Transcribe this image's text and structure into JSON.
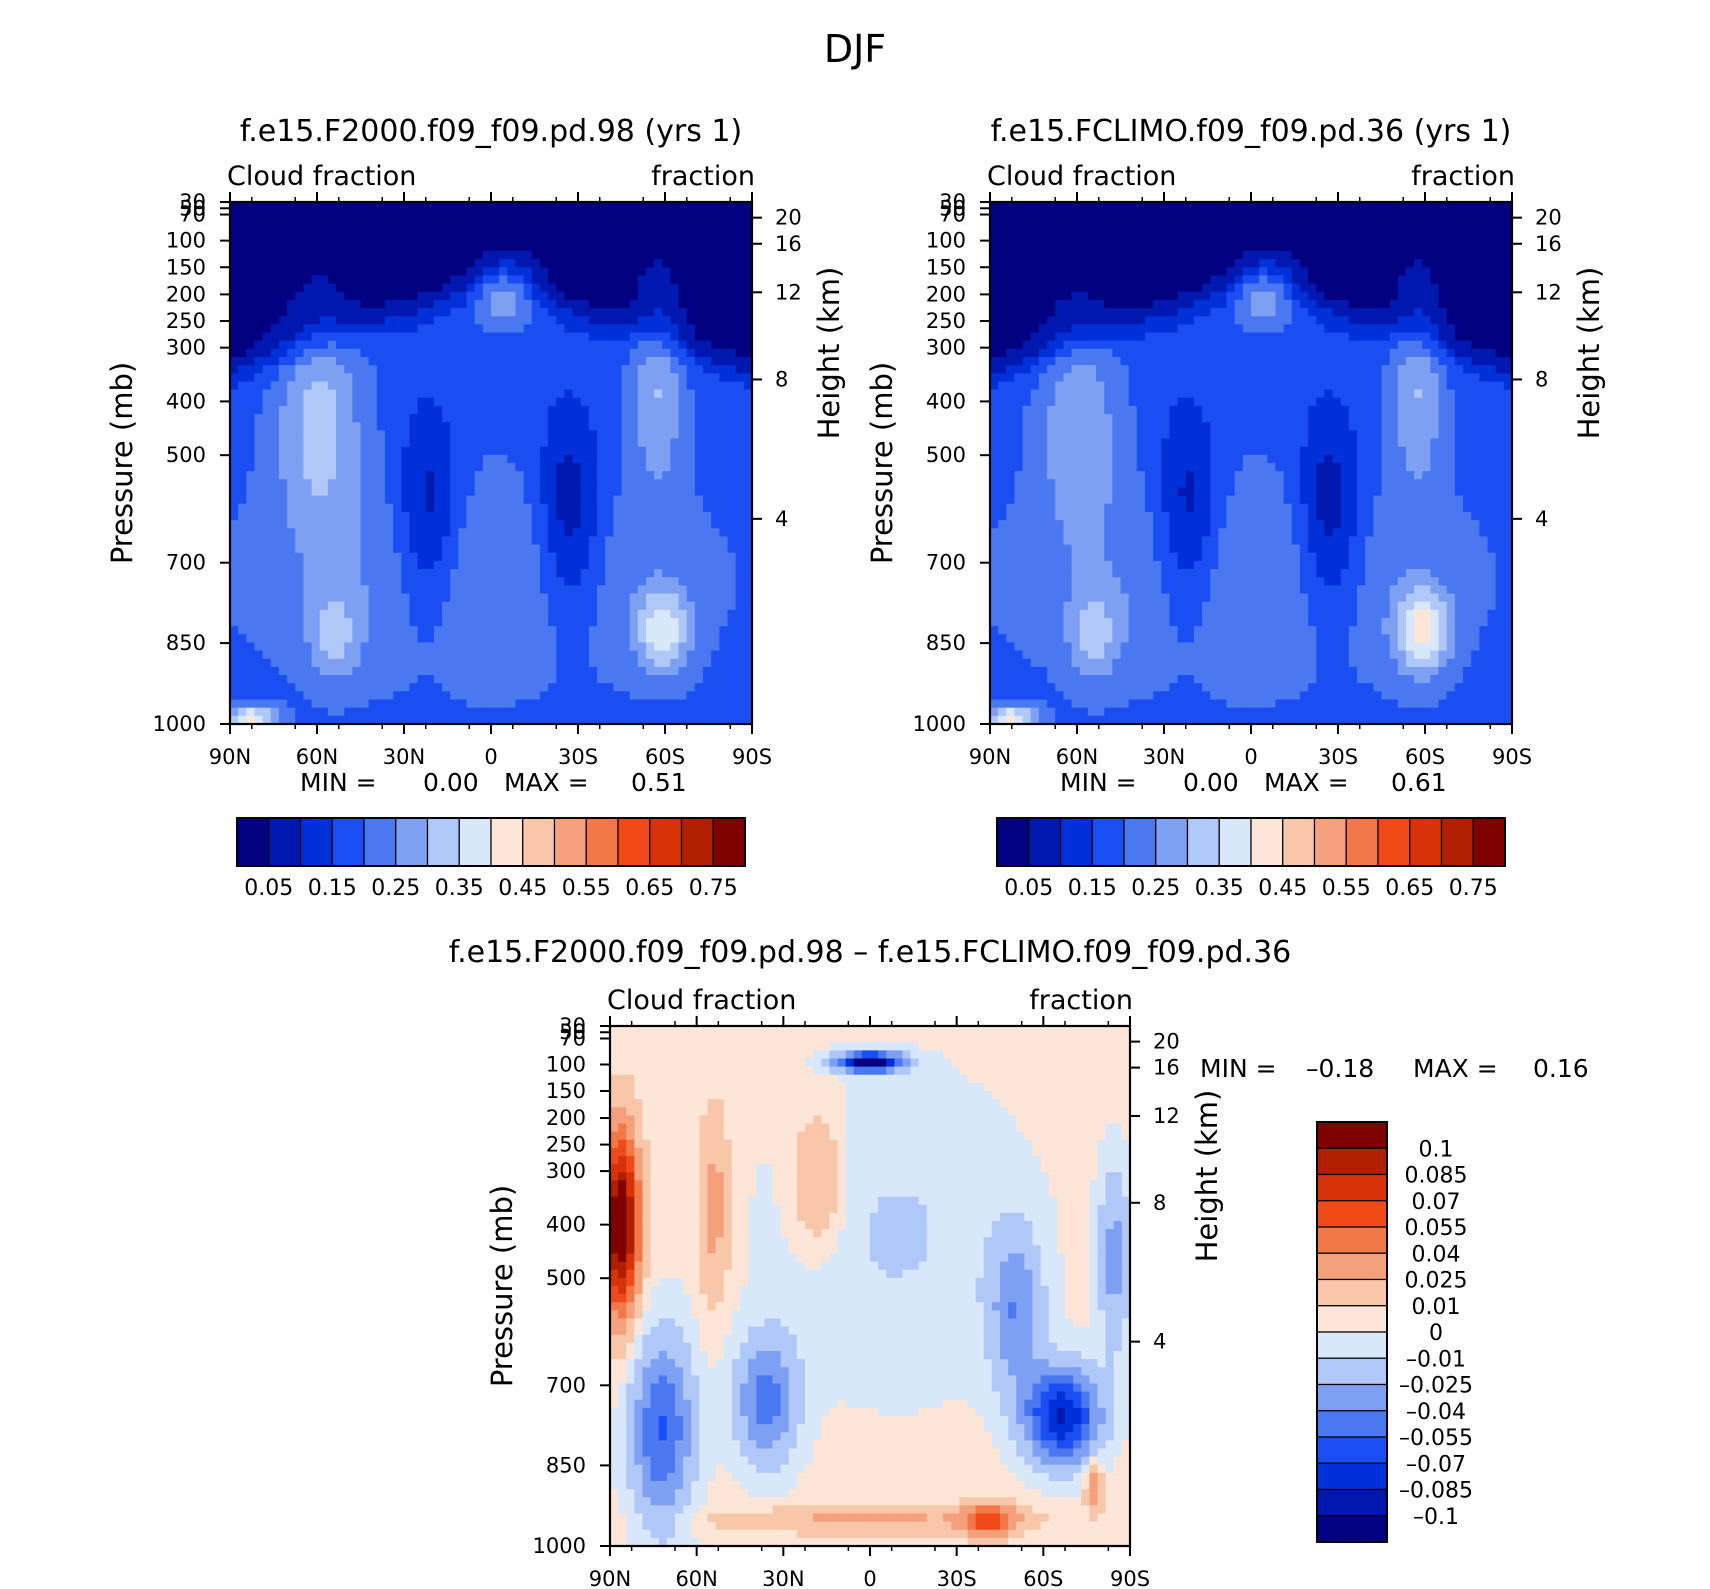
{
  "figure": {
    "title": "DJF"
  },
  "chart_data": [
    {
      "type": "heatmap",
      "title": "f.e15.F2000.f09_f09.pd.98 (yrs 1)",
      "subtitle_left": "Cloud fraction",
      "subtitle_right": "fraction",
      "xlabel": "",
      "ylabel": "Pressure (mb)",
      "ylabel_right": "Height (km)",
      "x_ticks": [
        "90N",
        "60N",
        "30N",
        "0",
        "30S",
        "60S",
        "90S"
      ],
      "y_ticks": [
        "30",
        "50",
        "70",
        "100",
        "150",
        "200",
        "250",
        "300",
        "400",
        "500",
        "700",
        "850",
        "1000"
      ],
      "y_ticks_right": [
        "20",
        "16",
        "12",
        "8",
        "4"
      ],
      "xlim": [
        90,
        -90
      ],
      "ylim": [
        1000,
        30
      ],
      "stats": {
        "min_label": "MIN =",
        "min_value": "0.00",
        "max_label": "MAX =",
        "max_value": "0.51"
      },
      "colorbar": {
        "orientation": "horizontal",
        "levels": [
          "0.05",
          "0.15",
          "0.25",
          "0.35",
          "0.45",
          "0.55",
          "0.65",
          "0.75"
        ],
        "colors": [
          "#000080",
          "#0018b0",
          "#0030d8",
          "#1a4ef2",
          "#4a78f0",
          "#7ea0f2",
          "#b0c8f8",
          "#d8e8fa",
          "#fde6d8",
          "#f8c6a8",
          "#f4a07a",
          "#f27848",
          "#f04a18",
          "#d83208",
          "#b02000",
          "#800000"
        ]
      }
    },
    {
      "type": "heatmap",
      "title": "f.e15.FCLIMO.f09_f09.pd.36 (yrs 1)",
      "subtitle_left": "Cloud fraction",
      "subtitle_right": "fraction",
      "xlabel": "",
      "ylabel": "Pressure (mb)",
      "ylabel_right": "Height (km)",
      "x_ticks": [
        "90N",
        "60N",
        "30N",
        "0",
        "30S",
        "60S",
        "90S"
      ],
      "y_ticks": [
        "30",
        "50",
        "70",
        "100",
        "150",
        "200",
        "250",
        "300",
        "400",
        "500",
        "700",
        "850",
        "1000"
      ],
      "y_ticks_right": [
        "20",
        "16",
        "12",
        "8",
        "4"
      ],
      "xlim": [
        90,
        -90
      ],
      "ylim": [
        1000,
        30
      ],
      "stats": {
        "min_label": "MIN =",
        "min_value": "0.00",
        "max_label": "MAX =",
        "max_value": "0.61"
      },
      "colorbar": {
        "orientation": "horizontal",
        "levels": [
          "0.05",
          "0.15",
          "0.25",
          "0.35",
          "0.45",
          "0.55",
          "0.65",
          "0.75"
        ],
        "colors": [
          "#000080",
          "#0018b0",
          "#0030d8",
          "#1a4ef2",
          "#4a78f0",
          "#7ea0f2",
          "#b0c8f8",
          "#d8e8fa",
          "#fde6d8",
          "#f8c6a8",
          "#f4a07a",
          "#f27848",
          "#f04a18",
          "#d83208",
          "#b02000",
          "#800000"
        ]
      }
    },
    {
      "type": "heatmap",
      "title": "f.e15.F2000.f09_f09.pd.98 – f.e15.FCLIMO.f09_f09.pd.36",
      "subtitle_left": "Cloud fraction",
      "subtitle_right": "fraction",
      "xlabel": "",
      "ylabel": "Pressure (mb)",
      "ylabel_right": "Height (km)",
      "x_ticks": [
        "90N",
        "60N",
        "30N",
        "0",
        "30S",
        "60S",
        "90S"
      ],
      "y_ticks": [
        "30",
        "50",
        "70",
        "100",
        "150",
        "200",
        "250",
        "300",
        "400",
        "500",
        "700",
        "850",
        "1000"
      ],
      "y_ticks_right": [
        "20",
        "16",
        "12",
        "8",
        "4"
      ],
      "xlim": [
        90,
        -90
      ],
      "ylim": [
        1000,
        30
      ],
      "stats": {
        "min_label": "MIN =",
        "min_value": "–0.18",
        "max_label": "MAX =",
        "max_value": "0.16"
      },
      "colorbar": {
        "orientation": "vertical",
        "levels": [
          "0.1",
          "0.085",
          "0.07",
          "0.055",
          "0.04",
          "0.025",
          "0.01",
          "0",
          "–0.01",
          "–0.025",
          "–0.04",
          "–0.055",
          "–0.07",
          "–0.085",
          "–0.1"
        ],
        "colors": [
          "#800000",
          "#b02000",
          "#d83208",
          "#f04a18",
          "#f27848",
          "#f4a07a",
          "#f8c6a8",
          "#fde6d8",
          "#d8e8fa",
          "#b0c8f8",
          "#7ea0f2",
          "#4a78f0",
          "#1a4ef2",
          "#0030d8",
          "#0018b0",
          "#000080"
        ]
      }
    }
  ]
}
